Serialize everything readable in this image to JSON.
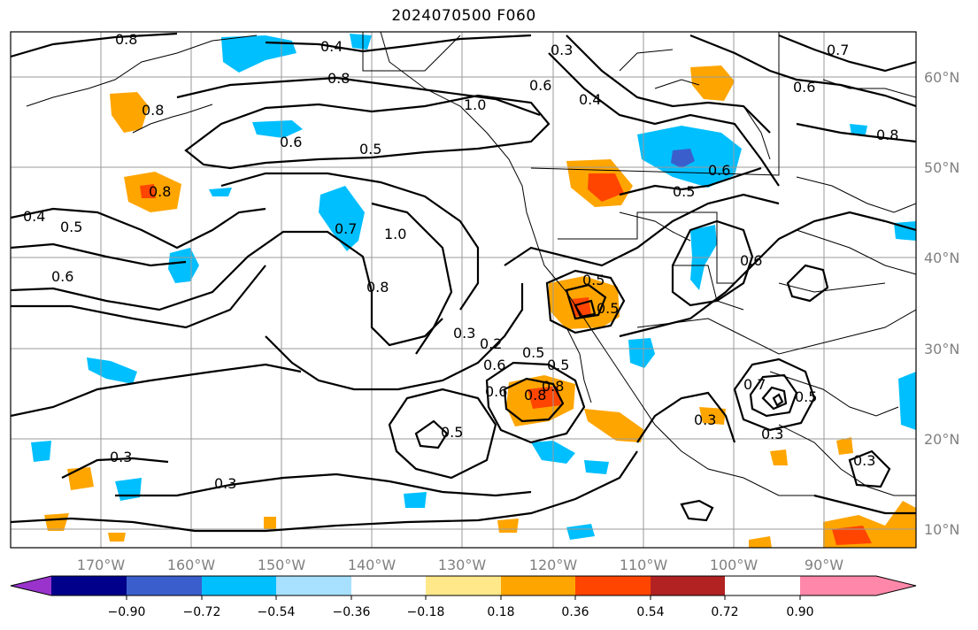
{
  "title": "2024070500 F060",
  "map": {
    "lon_labels": [
      "170°W",
      "160°W",
      "150°W",
      "140°W",
      "130°W",
      "120°W",
      "110°W",
      "100°W",
      "90°W"
    ],
    "lat_labels": [
      "60°N",
      "50°N",
      "40°N",
      "30°N",
      "20°N",
      "10°N"
    ],
    "contour_labels": [
      "0.8",
      "0.4",
      "0.8",
      "0.8",
      "0.6",
      "0.5",
      "1.0",
      "0.3",
      "0.6",
      "0.4",
      "0.5",
      "0.7",
      "1.0",
      "0.8",
      "0.3",
      "0.2",
      "0.5",
      "0.5",
      "0.6",
      "0.8",
      "0.5",
      "0.3",
      "0.3",
      "0.8",
      "0.4",
      "0.5",
      "0.6",
      "0.7",
      "0.6",
      "0.8",
      "0.3",
      "0.5",
      "0.5",
      "0.3",
      "0.3",
      "0.6",
      "0.7",
      "0.6",
      "0.5",
      "0.6",
      "0.8"
    ]
  },
  "colorbar": {
    "tick_labels": [
      "−0.90",
      "−0.72",
      "−0.54",
      "−0.36",
      "−0.18",
      "0.18",
      "0.36",
      "0.54",
      "0.72",
      "0.90"
    ],
    "colors": [
      "#9933cc",
      "#00008b",
      "#3a5fcd",
      "#00bfff",
      "#a8e0ff",
      "#ffffff",
      "#ffe88a",
      "#ffa500",
      "#ff4500",
      "#b22222",
      "#ff88aa"
    ]
  }
}
